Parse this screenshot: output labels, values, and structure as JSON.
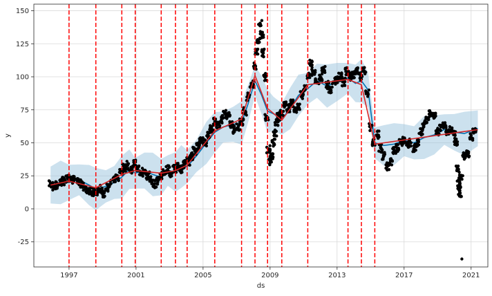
{
  "chart_data": {
    "type": "scatter",
    "title": "",
    "xlabel": "ds",
    "ylabel": "y",
    "xlim": [
      1994.9,
      2022.0
    ],
    "ylim": [
      -44,
      155
    ],
    "x_ticks": [
      1997,
      2001,
      2005,
      2009,
      2013,
      2017,
      2021
    ],
    "y_ticks": [
      -25,
      0,
      25,
      50,
      75,
      100,
      125,
      150
    ],
    "grid": true,
    "legend": "none",
    "colors": {
      "observed": "#000000",
      "forecast": "#0072B2",
      "uncertainty_band": "#8dbcd9",
      "trend": "#d62728",
      "changepoints": "#ff0000",
      "grid": "#d9d9d9"
    },
    "changepoints": [
      1997.0,
      1998.6,
      2000.15,
      2000.95,
      2002.5,
      2003.35,
      2004.05,
      2005.7,
      2007.3,
      2008.1,
      2008.85,
      2009.7,
      2011.25,
      2013.65,
      2014.45,
      2015.25
    ],
    "trend": {
      "x": [
        1995.9,
        1997.0,
        1998.6,
        2000.15,
        2000.95,
        2002.5,
        2003.35,
        2004.05,
        2005.7,
        2007.3,
        2008.1,
        2008.85,
        2009.7,
        2011.25,
        2013.65,
        2014.45,
        2015.25,
        2021.4
      ],
      "y": [
        18,
        21,
        16,
        26,
        29,
        27,
        29,
        33,
        59,
        68,
        101,
        76,
        67,
        94,
        98,
        94,
        49,
        60
      ]
    },
    "forecast": {
      "x": [
        1995.9,
        1996.5,
        1997.0,
        1997.6,
        1998.2,
        1998.6,
        1999.2,
        1999.7,
        2000.15,
        2000.6,
        2000.95,
        2001.5,
        2002.0,
        2002.5,
        2002.9,
        2003.35,
        2003.7,
        2004.05,
        2004.6,
        2005.2,
        2005.7,
        2006.2,
        2006.8,
        2007.3,
        2007.7,
        2008.1,
        2008.5,
        2008.85,
        2009.2,
        2009.7,
        2010.2,
        2010.7,
        2011.25,
        2011.8,
        2012.4,
        2013.0,
        2013.65,
        2014.1,
        2014.45,
        2014.85,
        2015.25,
        2015.8,
        2016.4,
        2017.0,
        2017.6,
        2018.2,
        2018.8,
        2019.4,
        2020.0,
        2020.6,
        2021.4
      ],
      "y": [
        18,
        20,
        20,
        22,
        18,
        15,
        17,
        20,
        24,
        30,
        27,
        29,
        26,
        24,
        29,
        28,
        32,
        32,
        40,
        50,
        58,
        62,
        64,
        65,
        80,
        97,
        86,
        74,
        72,
        68,
        76,
        86,
        91,
        97,
        93,
        96,
        99,
        95,
        97,
        90,
        50,
        48,
        49,
        52,
        50,
        54,
        56,
        60,
        58,
        57,
        61
      ]
    },
    "band_halfwidth": 14,
    "observed_points": [
      [
        1995.9,
        19
      ],
      [
        1996.1,
        17
      ],
      [
        1996.3,
        18
      ],
      [
        1996.5,
        20
      ],
      [
        1996.7,
        21
      ],
      [
        1996.9,
        23
      ],
      [
        1997.1,
        24
      ],
      [
        1997.3,
        22
      ],
      [
        1997.5,
        20
      ],
      [
        1997.7,
        19
      ],
      [
        1997.9,
        17
      ],
      [
        1998.1,
        15
      ],
      [
        1998.3,
        13
      ],
      [
        1998.5,
        12
      ],
      [
        1998.7,
        13
      ],
      [
        1998.9,
        15
      ],
      [
        1999.1,
        12
      ],
      [
        1999.3,
        16
      ],
      [
        1999.5,
        19
      ],
      [
        1999.7,
        22
      ],
      [
        1999.9,
        24
      ],
      [
        2000.1,
        28
      ],
      [
        2000.3,
        31
      ],
      [
        2000.5,
        33
      ],
      [
        2000.7,
        30
      ],
      [
        2000.9,
        34
      ],
      [
        2001.1,
        31
      ],
      [
        2001.3,
        28
      ],
      [
        2001.5,
        27
      ],
      [
        2001.7,
        25
      ],
      [
        2001.9,
        22
      ],
      [
        2002.1,
        19
      ],
      [
        2002.3,
        21
      ],
      [
        2002.5,
        25
      ],
      [
        2002.7,
        28
      ],
      [
        2002.9,
        30
      ],
      [
        2003.1,
        27
      ],
      [
        2003.3,
        30
      ],
      [
        2003.5,
        32
      ],
      [
        2003.7,
        30
      ],
      [
        2003.9,
        34
      ],
      [
        2004.1,
        36
      ],
      [
        2004.3,
        40
      ],
      [
        2004.5,
        44
      ],
      [
        2004.7,
        48
      ],
      [
        2004.9,
        52
      ],
      [
        2005.1,
        50
      ],
      [
        2005.3,
        56
      ],
      [
        2005.5,
        61
      ],
      [
        2005.7,
        66
      ],
      [
        2005.9,
        64
      ],
      [
        2006.1,
        68
      ],
      [
        2006.3,
        72
      ],
      [
        2006.5,
        70
      ],
      [
        2006.7,
        64
      ],
      [
        2006.9,
        60
      ],
      [
        2007.1,
        62
      ],
      [
        2007.3,
        66
      ],
      [
        2007.5,
        74
      ],
      [
        2007.7,
        85
      ],
      [
        2007.9,
        95
      ],
      [
        2008.1,
        108
      ],
      [
        2008.2,
        118
      ],
      [
        2008.3,
        128
      ],
      [
        2008.4,
        140
      ],
      [
        2008.5,
        132
      ],
      [
        2008.6,
        118
      ],
      [
        2008.7,
        100
      ],
      [
        2008.8,
        70
      ],
      [
        2008.9,
        45
      ],
      [
        2009.0,
        36
      ],
      [
        2009.1,
        40
      ],
      [
        2009.2,
        50
      ],
      [
        2009.3,
        58
      ],
      [
        2009.4,
        66
      ],
      [
        2009.5,
        70
      ],
      [
        2009.7,
        72
      ],
      [
        2009.9,
        78
      ],
      [
        2010.1,
        76
      ],
      [
        2010.3,
        80
      ],
      [
        2010.5,
        74
      ],
      [
        2010.7,
        78
      ],
      [
        2010.9,
        86
      ],
      [
        2011.1,
        92
      ],
      [
        2011.3,
        100
      ],
      [
        2011.45,
        110
      ],
      [
        2011.6,
        104
      ],
      [
        2011.8,
        96
      ],
      [
        2012.0,
        100
      ],
      [
        2012.2,
        106
      ],
      [
        2012.4,
        94
      ],
      [
        2012.6,
        90
      ],
      [
        2012.8,
        96
      ],
      [
        2013.0,
        98
      ],
      [
        2013.2,
        100
      ],
      [
        2013.4,
        96
      ],
      [
        2013.6,
        104
      ],
      [
        2013.8,
        100
      ],
      [
        2014.0,
        102
      ],
      [
        2014.2,
        104
      ],
      [
        2014.4,
        100
      ],
      [
        2014.6,
        104
      ],
      [
        2014.8,
        88
      ],
      [
        2015.0,
        62
      ],
      [
        2015.2,
        50
      ],
      [
        2015.4,
        56
      ],
      [
        2015.6,
        46
      ],
      [
        2015.8,
        40
      ],
      [
        2016.0,
        32
      ],
      [
        2016.2,
        36
      ],
      [
        2016.4,
        44
      ],
      [
        2016.6,
        46
      ],
      [
        2016.8,
        50
      ],
      [
        2017.0,
        52
      ],
      [
        2017.2,
        48
      ],
      [
        2017.4,
        50
      ],
      [
        2017.6,
        46
      ],
      [
        2017.8,
        50
      ],
      [
        2018.0,
        58
      ],
      [
        2018.2,
        64
      ],
      [
        2018.4,
        68
      ],
      [
        2018.6,
        72
      ],
      [
        2018.8,
        70
      ],
      [
        2019.0,
        58
      ],
      [
        2019.2,
        62
      ],
      [
        2019.4,
        64
      ],
      [
        2019.6,
        58
      ],
      [
        2019.8,
        60
      ],
      [
        2020.0,
        56
      ],
      [
        2020.1,
        50
      ],
      [
        2020.2,
        30
      ],
      [
        2020.25,
        22
      ],
      [
        2020.3,
        16
      ],
      [
        2020.35,
        12
      ],
      [
        2020.4,
        24
      ],
      [
        2020.45,
        -38
      ],
      [
        2020.6,
        40
      ],
      [
        2020.8,
        42
      ],
      [
        2021.0,
        54
      ],
      [
        2021.2,
        60
      ]
    ]
  }
}
